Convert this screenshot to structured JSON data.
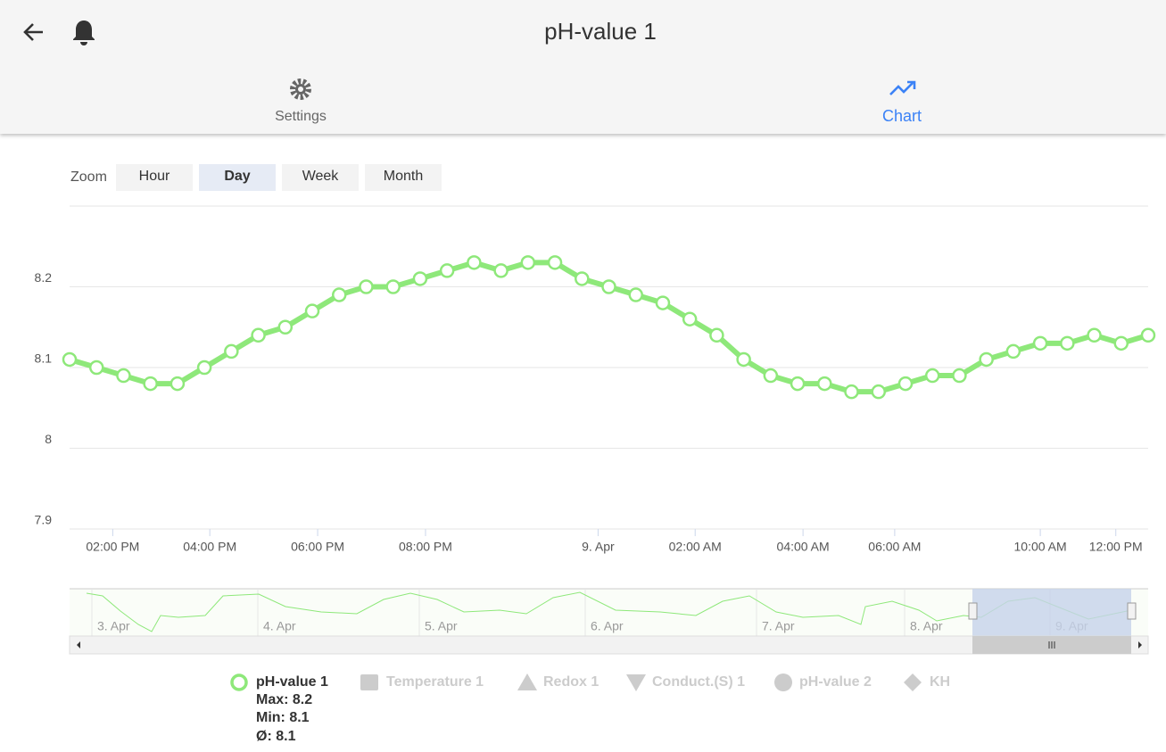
{
  "header": {
    "title": "pH-value 1"
  },
  "tabs": [
    "Settings",
    "Chart"
  ],
  "zoom": {
    "label": "Zoom",
    "buttons": [
      "Hour",
      "Day",
      "Week",
      "Month"
    ],
    "active": "Day"
  },
  "chart_data": {
    "type": "line",
    "x": [
      13.5,
      14,
      14.5,
      15,
      15.5,
      16,
      16.5,
      17,
      17.5,
      18,
      18.5,
      19,
      19.5,
      20,
      20.5,
      21,
      21.5,
      22,
      22.5,
      23,
      23.5,
      24,
      24.5,
      25,
      25.5,
      26,
      26.5,
      27,
      27.5,
      28,
      28.5,
      29,
      29.5,
      30,
      30.5,
      31,
      31.5,
      32,
      32.5,
      33,
      33.5
    ],
    "series": [
      {
        "name": "pH-value 1",
        "color": "#8ee87a",
        "values": [
          8.11,
          8.1,
          8.09,
          8.08,
          8.08,
          8.1,
          8.12,
          8.14,
          8.15,
          8.17,
          8.19,
          8.2,
          8.2,
          8.21,
          8.22,
          8.23,
          8.22,
          8.23,
          8.23,
          8.21,
          8.2,
          8.19,
          8.18,
          8.16,
          8.14,
          8.11,
          8.09,
          8.08,
          8.08,
          8.07,
          8.07,
          8.08,
          8.09,
          8.09,
          8.11,
          8.12,
          8.13,
          8.13,
          8.14,
          8.13,
          8.14
        ]
      }
    ],
    "xlim": [
      13.5,
      33.5
    ],
    "xticks": [
      {
        "value": 14.3,
        "label": "02:00 PM"
      },
      {
        "value": 16.1,
        "label": "04:00 PM"
      },
      {
        "value": 18.1,
        "label": "06:00 PM"
      },
      {
        "value": 20.1,
        "label": "08:00 PM"
      },
      {
        "value": 23.3,
        "label": "9. Apr"
      },
      {
        "value": 25.1,
        "label": "02:00 AM"
      },
      {
        "value": 27.1,
        "label": "04:00 AM"
      },
      {
        "value": 28.8,
        "label": "06:00 AM"
      },
      {
        "value": 31.5,
        "label": "10:00 AM"
      },
      {
        "value": 32.9,
        "label": "12:00 PM"
      }
    ],
    "ylim": [
      7.9,
      8.3
    ],
    "yticks": [
      7.9,
      8,
      8.1,
      8.2
    ],
    "grid": true
  },
  "navigator": {
    "labels": [
      "3. Apr",
      "4. Apr",
      "5. Apr",
      "6. Apr",
      "7. Apr",
      "8. Apr",
      "9. Apr"
    ]
  },
  "legend": {
    "stats": [
      "Max: 8.2",
      "Min: 8.1",
      "Ø: 8.1"
    ],
    "others": [
      "Temperature 1",
      "Redox 1",
      "Conduct.(S) 1",
      "pH-value 2",
      "KH"
    ]
  }
}
